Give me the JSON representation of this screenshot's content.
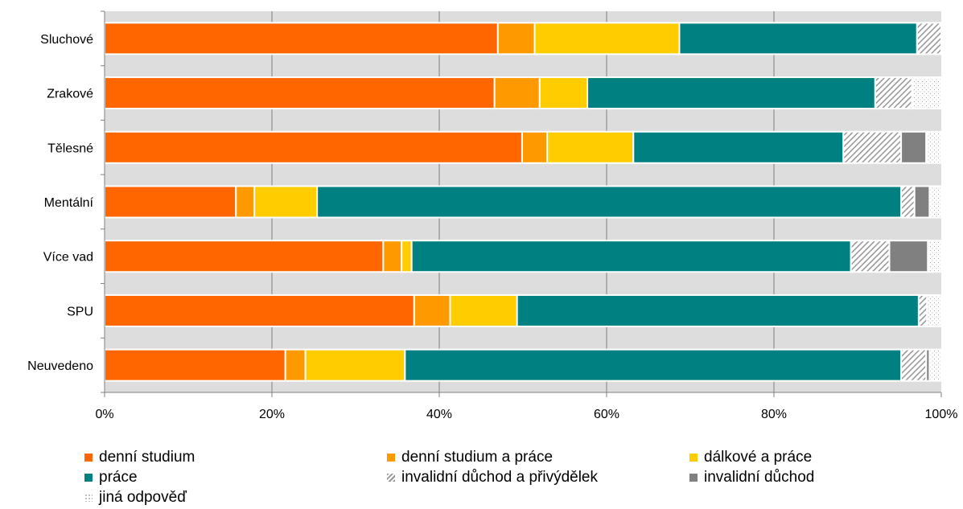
{
  "chart_data": {
    "type": "bar",
    "orientation": "horizontal",
    "stacked": "percent",
    "categories": [
      "Sluchové",
      "Zrakové",
      "Tělesné",
      "Mentální",
      "Více vad",
      "SPU",
      "Neuvedeno"
    ],
    "x_ticks": [
      "0%",
      "20%",
      "40%",
      "60%",
      "80%",
      "100%"
    ],
    "xlim": [
      0,
      100
    ],
    "grid": true,
    "legend_position": "bottom",
    "series": [
      {
        "name": "denní studium",
        "color": "#ff6600",
        "pattern": "solid",
        "values": [
          47.0,
          46.6,
          49.9,
          15.7,
          33.3,
          37.0,
          21.6
        ]
      },
      {
        "name": "denní studium a práce",
        "color": "#ff9900",
        "pattern": "solid",
        "values": [
          4.4,
          5.4,
          3.0,
          2.2,
          2.2,
          4.3,
          2.4
        ]
      },
      {
        "name": "dálkové a práce",
        "color": "#ffcc00",
        "pattern": "solid",
        "values": [
          17.3,
          5.7,
          10.3,
          7.5,
          1.2,
          8.0,
          11.9
        ]
      },
      {
        "name": "práce",
        "color": "#008080",
        "pattern": "solid",
        "values": [
          28.4,
          34.4,
          25.1,
          69.8,
          52.5,
          48.0,
          59.3
        ]
      },
      {
        "name": "invalidní důchod a přivýdělek",
        "color": "#969696",
        "pattern": "hatch",
        "values": [
          2.9,
          4.4,
          6.9,
          1.6,
          4.6,
          1.0,
          3.0
        ]
      },
      {
        "name": "invalidní důchod",
        "color": "#808080",
        "pattern": "solid",
        "values": [
          0,
          0,
          3.0,
          1.8,
          4.6,
          0,
          0.4
        ]
      },
      {
        "name": "jiná odpověď",
        "color": "#cccccc",
        "pattern": "dots",
        "values": [
          0,
          3.5,
          1.8,
          1.4,
          1.6,
          1.7,
          1.4
        ]
      }
    ]
  }
}
